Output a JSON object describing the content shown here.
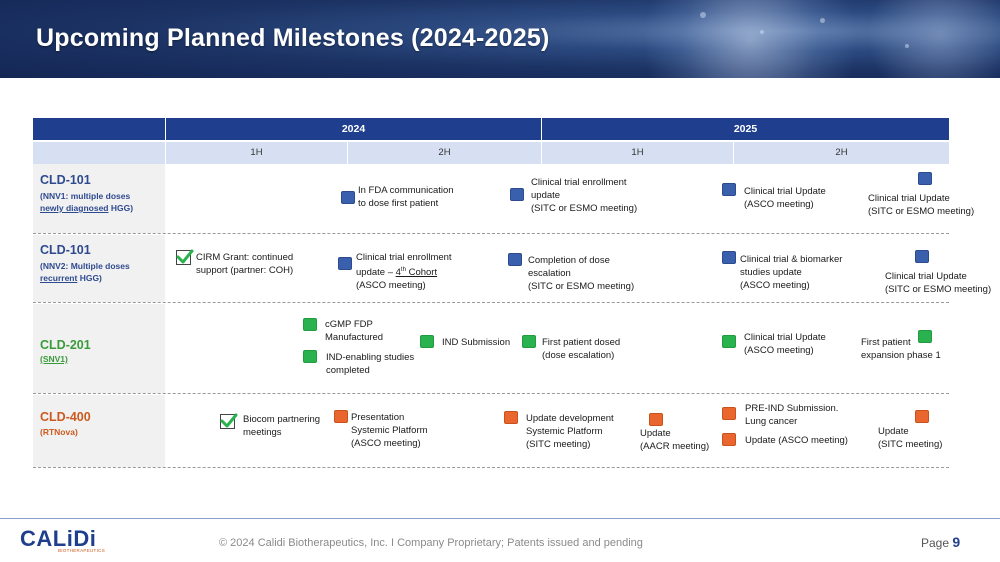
{
  "header": {
    "title": "Upcoming Planned Milestones (2024-2025)"
  },
  "timeline": {
    "years": [
      "2024",
      "2025"
    ],
    "halves": [
      "1H",
      "2H",
      "1H",
      "2H"
    ]
  },
  "rows": [
    {
      "name": "CLD-101",
      "sub_line1": "(NNV1: multiple doses",
      "sub_line2_underlined": "newly diagnosed",
      "sub_line2_rest": " HGG)",
      "milestones": [
        {
          "marker": "blue",
          "lines": [
            "In FDA communication",
            "to dose first patient"
          ]
        },
        {
          "marker": "blue",
          "lines": [
            "Clinical trial enrollment",
            "update",
            "(SITC or ESMO meeting)"
          ]
        },
        {
          "marker": "blue",
          "lines": [
            "Clinical trial Update",
            "(ASCO meeting)"
          ]
        },
        {
          "marker": "blue",
          "lines": [
            "Clinical trial Update",
            "(SITC or ESMO meeting)"
          ]
        }
      ]
    },
    {
      "name": "CLD-101",
      "sub_line1": "(NNV2: Multiple doses",
      "sub_line2_underlined": "recurrent",
      "sub_line2_rest": " HGG)",
      "milestones": [
        {
          "marker": "check",
          "lines": [
            "CIRM Grant: continued",
            "support (partner: COH)"
          ]
        },
        {
          "marker": "blue",
          "line1": "Clinical trial enrollment",
          "line2_pre": "update – ",
          "line2_num": "4",
          "line2_sup": "th",
          "line2_post": " Cohort",
          "line3": "(ASCO meeting)"
        },
        {
          "marker": "blue",
          "lines": [
            "Completion of dose",
            "escalation",
            "(SITC or ESMO meeting)"
          ]
        },
        {
          "marker": "blue",
          "lines": [
            "Clinical trial & biomarker",
            "studies update",
            "(ASCO meeting)"
          ]
        },
        {
          "marker": "blue",
          "lines": [
            "Clinical trial Update",
            "(SITC or ESMO meeting)"
          ]
        }
      ]
    },
    {
      "name": "CLD-201",
      "sub": "(SNV1)",
      "milestones": [
        {
          "marker": "green",
          "lines": [
            "cGMP FDP",
            "Manufactured"
          ]
        },
        {
          "marker": "green",
          "lines": [
            "IND-enabling studies",
            "completed"
          ]
        },
        {
          "marker": "green",
          "lines": [
            "IND Submission"
          ]
        },
        {
          "marker": "green",
          "lines": [
            "First patient dosed",
            "(dose escalation)"
          ]
        },
        {
          "marker": "green",
          "lines": [
            "Clinical trial Update",
            "(ASCO meeting)"
          ]
        },
        {
          "marker": "green",
          "lines": [
            "First patient",
            "expansion phase 1"
          ]
        }
      ]
    },
    {
      "name": "CLD-400",
      "sub": "(RTNova)",
      "milestones": [
        {
          "marker": "check",
          "lines": [
            "Biocom partnering",
            "meetings"
          ]
        },
        {
          "marker": "orange",
          "lines": [
            "Presentation",
            "Systemic Platform",
            "(ASCO meeting)"
          ]
        },
        {
          "marker": "orange",
          "lines": [
            "Update development",
            "Systemic Platform",
            "(SITC meeting)"
          ]
        },
        {
          "marker": "orange",
          "lines": [
            "Update",
            "(AACR meeting)"
          ]
        },
        {
          "marker": "orange",
          "lines": [
            "PRE-IND Submission.",
            "Lung cancer"
          ]
        },
        {
          "marker": "orange",
          "lines": [
            "Update (ASCO meeting)"
          ]
        },
        {
          "marker": "orange",
          "lines": [
            "Update",
            "(SITC meeting)"
          ]
        }
      ]
    }
  ],
  "footer": {
    "logo_text": "CALiDi",
    "logo_sub": "BIOTHERAPEUTICS",
    "copyright": "© 2024 Calidi Biotherapeutics, Inc. I  Company Proprietary; Patents issued and pending",
    "page_label": "Page",
    "page_number": "9"
  },
  "colors": {
    "banner": "#1b3263",
    "header_blue": "#1f3f8e",
    "half_row": "#d6e0f2",
    "marker_blue": "#3a5fad",
    "marker_green": "#2ab24e",
    "marker_orange": "#e9672e",
    "cld101": "#2e4a8f",
    "cld201": "#3a9a3a",
    "cld400": "#cc5a1f"
  }
}
